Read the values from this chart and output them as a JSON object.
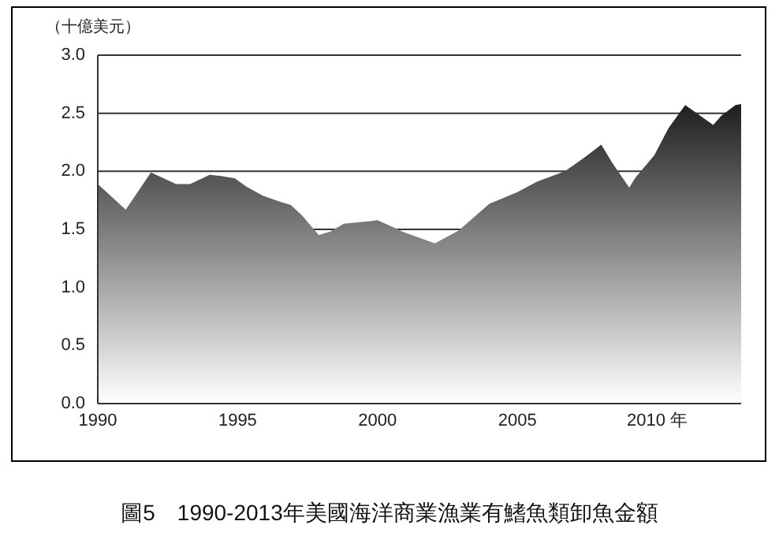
{
  "chart_data": {
    "type": "area",
    "title": "圖5　1990-2013年美國海洋商業漁業有鰭魚類卸魚金額",
    "ylabel": "（十億美元）",
    "series": [
      {
        "color": "#1e1e1e",
        "x": [
          1990,
          1991,
          1991.9,
          1992.8,
          1993.3,
          1994,
          1994.4,
          1994.9,
          1995.3,
          1995.9,
          1996.5,
          1996.9,
          1997.3,
          1997.8,
          1997.9,
          1998.3,
          1998.8,
          1999.7,
          2000,
          2000.9,
          2002.05,
          2002.9,
          2004,
          2005,
          2005.7,
          2006.7,
          2007.4,
          2008,
          2008.4,
          2009,
          2009.2,
          2009.9,
          2010.4,
          2011,
          2012,
          2012.3,
          2012.8,
          2013
        ],
        "values": [
          1.89,
          1.67,
          1.99,
          1.89,
          1.89,
          1.97,
          1.96,
          1.94,
          1.87,
          1.79,
          1.74,
          1.71,
          1.62,
          1.48,
          1.45,
          1.48,
          1.55,
          1.57,
          1.58,
          1.48,
          1.38,
          1.49,
          1.72,
          1.82,
          1.91,
          2.0,
          2.12,
          2.23,
          2.07,
          1.86,
          1.94,
          2.14,
          2.37,
          2.57,
          2.4,
          2.48,
          2.57,
          2.58
        ]
      }
    ],
    "xlim": [
      1990,
      2013
    ],
    "xticks": [
      1990,
      1995,
      2000,
      2005,
      {
        "value": 2010,
        "label": "2010 年"
      }
    ],
    "ylim": [
      0,
      3
    ],
    "yticks": [
      {
        "value": 0,
        "label": "0.0"
      },
      {
        "value": 0.5,
        "label": "0.5"
      },
      {
        "value": 1,
        "label": "1.0"
      },
      {
        "value": 1.5,
        "label": "1.5"
      },
      {
        "value": 2,
        "label": "2.0"
      },
      {
        "value": 2.5,
        "label": "2.5"
      },
      {
        "value": 3,
        "label": "3.0"
      }
    ],
    "grid": "y"
  }
}
